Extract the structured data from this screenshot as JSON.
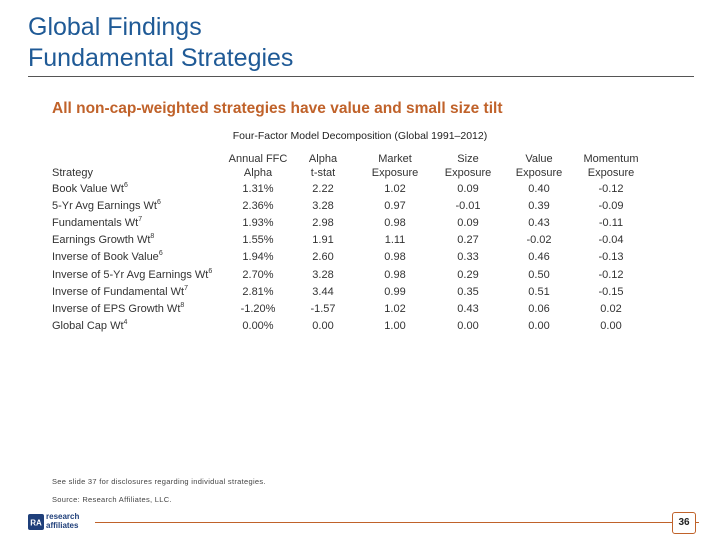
{
  "header": {
    "title_line1": "Global Findings",
    "title_line2": "Fundamental Strategies"
  },
  "subtitle": "All non-cap-weighted strategies have value and small size tilt",
  "table": {
    "title": "Four-Factor Model Decomposition (Global 1991–2012)",
    "headers": [
      {
        "line1": "",
        "line2": "Strategy"
      },
      {
        "line1": "Annual FFC",
        "line2": "Alpha"
      },
      {
        "line1": "Alpha",
        "line2": "t-stat"
      },
      {
        "line1": "Market",
        "line2": "Exposure"
      },
      {
        "line1": "Size",
        "line2": "Exposure"
      },
      {
        "line1": "Value",
        "line2": "Exposure"
      },
      {
        "line1": "Momentum",
        "line2": "Exposure"
      }
    ],
    "rows": [
      {
        "name": "Book Value Wt",
        "sup": "6",
        "alpha": "1.31%",
        "tstat": "2.22",
        "market": "1.02",
        "size": "0.09",
        "value": "0.40",
        "momentum": "-0.12"
      },
      {
        "name": "5-Yr Avg Earnings Wt",
        "sup": "6",
        "alpha": "2.36%",
        "tstat": "3.28",
        "market": "0.97",
        "size": "-0.01",
        "value": "0.39",
        "momentum": "-0.09"
      },
      {
        "name": "Fundamentals Wt",
        "sup": "7",
        "alpha": "1.93%",
        "tstat": "2.98",
        "market": "0.98",
        "size": "0.09",
        "value": "0.43",
        "momentum": "-0.11"
      },
      {
        "name": "Earnings Growth Wt",
        "sup": "8",
        "alpha": "1.55%",
        "tstat": "1.91",
        "market": "1.11",
        "size": "0.27",
        "value": "-0.02",
        "momentum": "-0.04"
      },
      {
        "name": "Inverse of Book Value",
        "sup": "6",
        "alpha": "1.94%",
        "tstat": "2.60",
        "market": "0.98",
        "size": "0.33",
        "value": "0.46",
        "momentum": "-0.13"
      },
      {
        "name": "Inverse of 5-Yr Avg Earnings Wt",
        "sup": "6",
        "alpha": "2.70%",
        "tstat": "3.28",
        "market": "0.98",
        "size": "0.29",
        "value": "0.50",
        "momentum": "-0.12"
      },
      {
        "name": "Inverse of Fundamental Wt",
        "sup": "7",
        "alpha": "2.81%",
        "tstat": "3.44",
        "market": "0.99",
        "size": "0.35",
        "value": "0.51",
        "momentum": "-0.15"
      },
      {
        "name": "Inverse of EPS Growth Wt",
        "sup": "8",
        "alpha": "-1.20%",
        "tstat": "-1.57",
        "market": "1.02",
        "size": "0.43",
        "value": "0.06",
        "momentum": "0.02"
      },
      {
        "name": "Global Cap Wt",
        "sup": "4",
        "alpha": "0.00%",
        "tstat": "0.00",
        "market": "1.00",
        "size": "0.00",
        "value": "0.00",
        "momentum": "0.00"
      }
    ]
  },
  "footnotes": {
    "disclosure": "See slide 37 for disclosures regarding individual strategies.",
    "source": "Source: Research Affiliates, LLC."
  },
  "footer": {
    "logo_mark": "RA",
    "logo_line1": "research",
    "logo_line2": "affiliates",
    "page_number": "36"
  },
  "colors": {
    "title": "#1f5a96",
    "accent": "#c0622a"
  }
}
